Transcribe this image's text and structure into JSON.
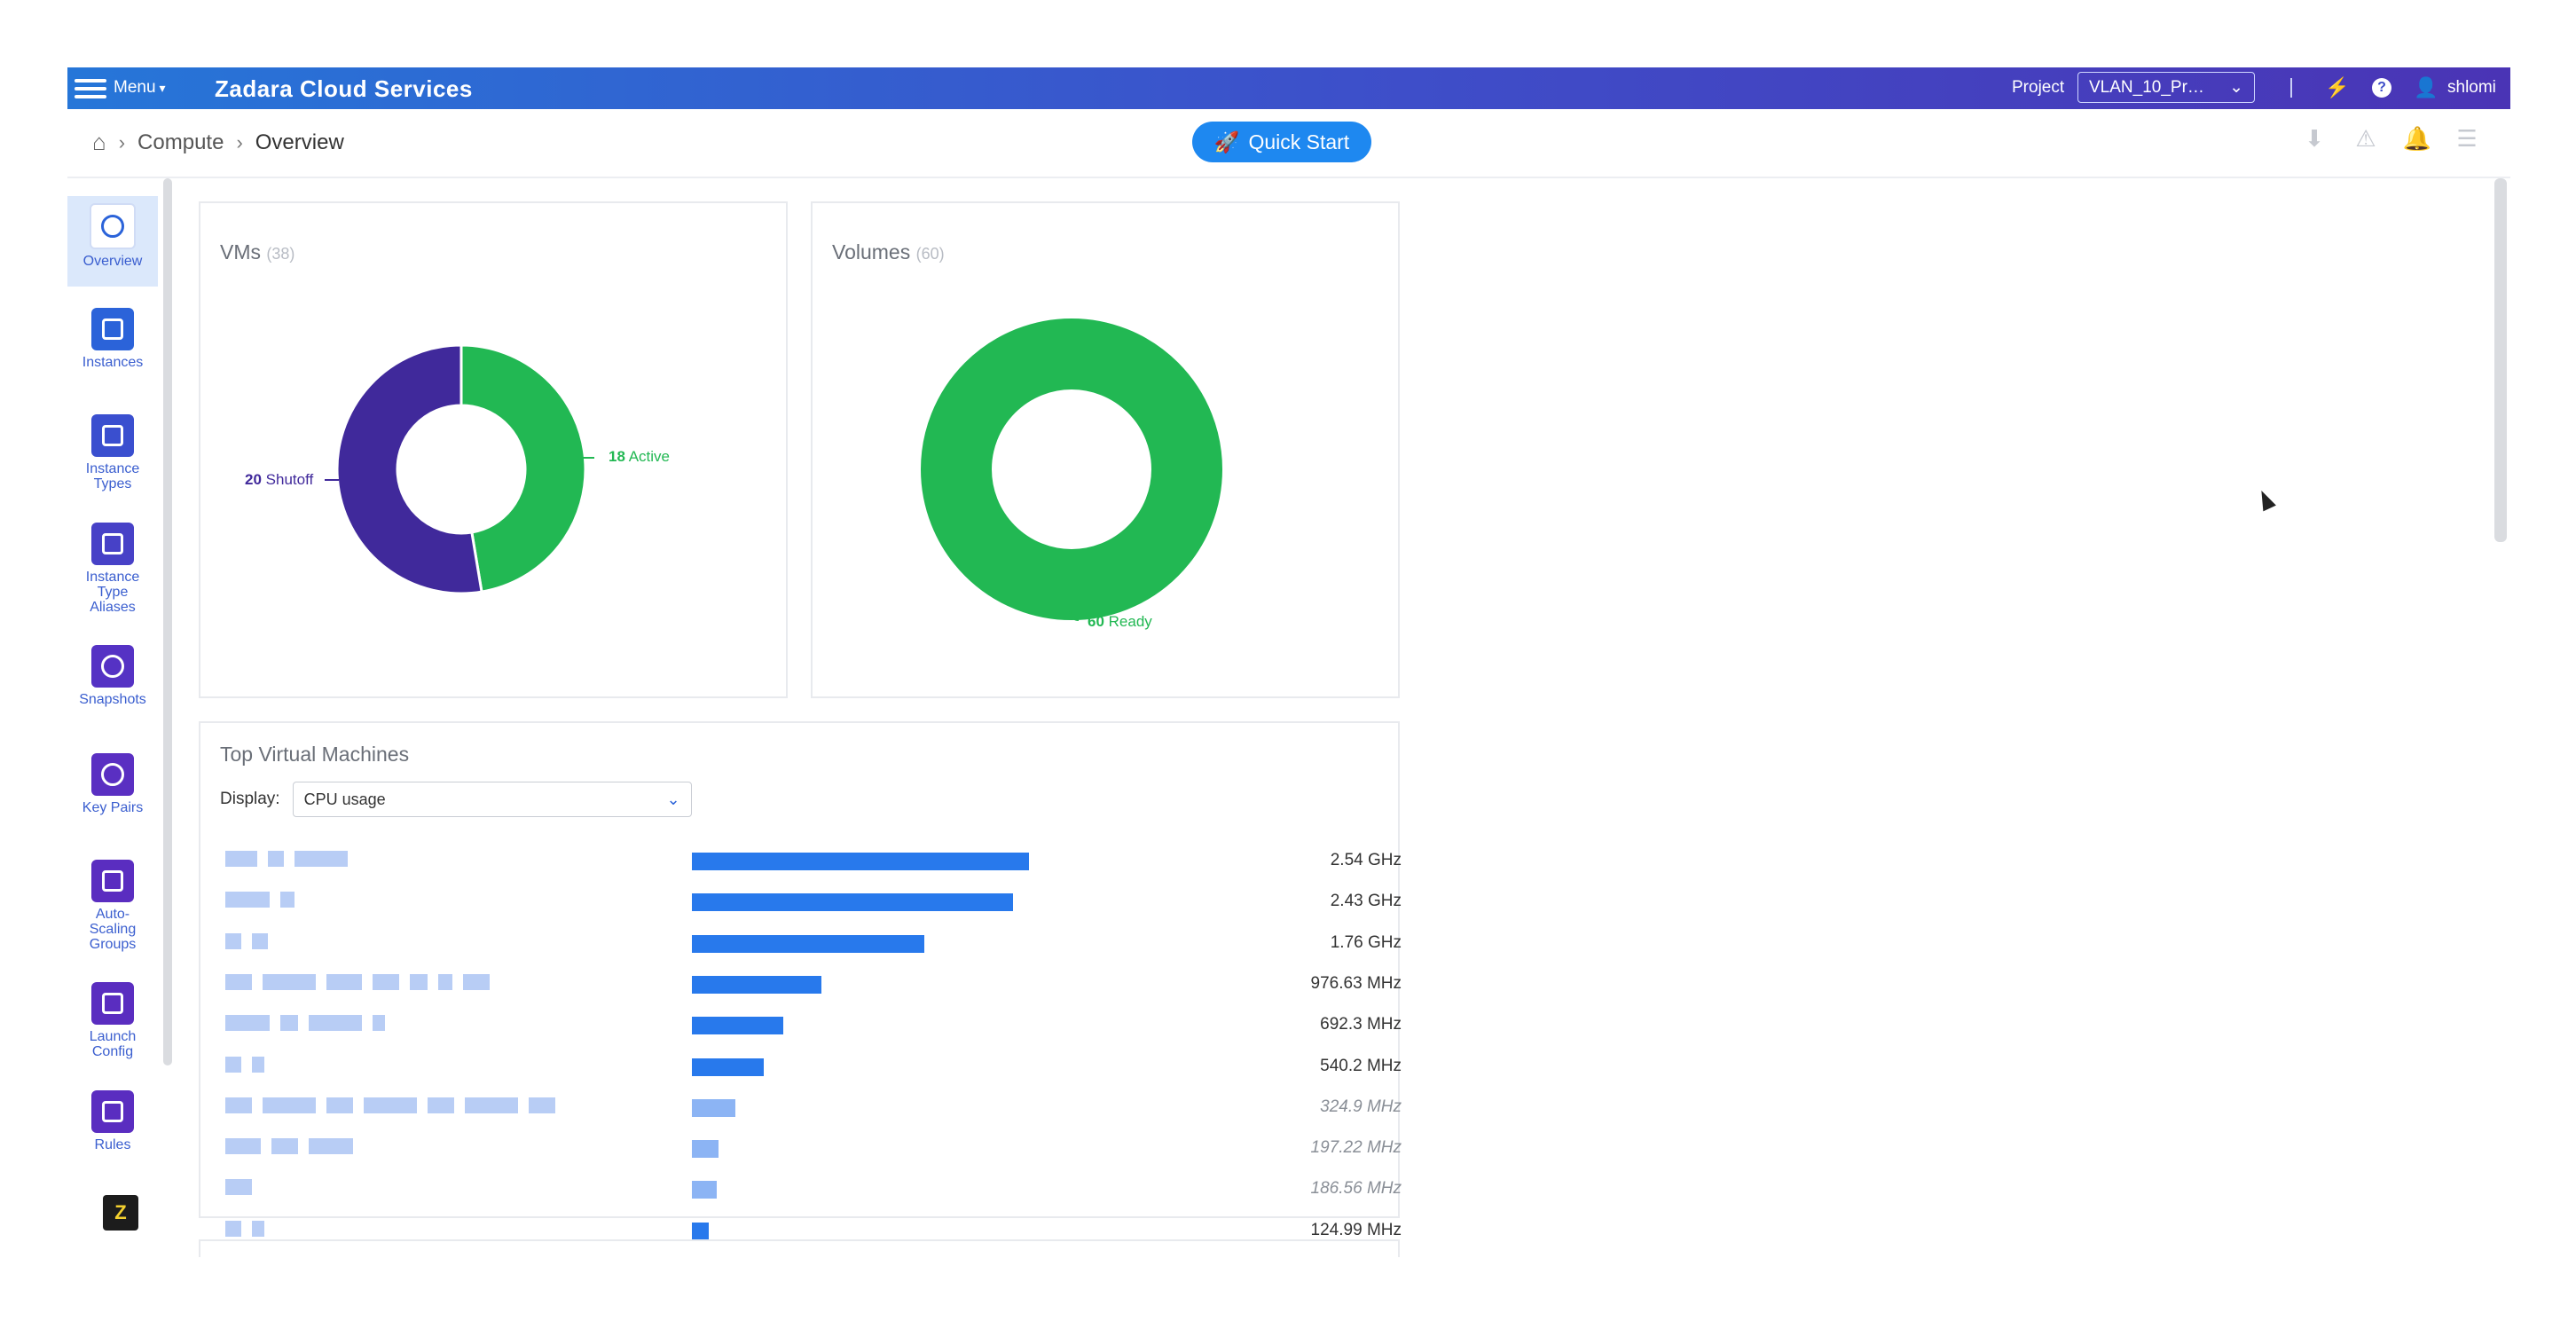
{
  "topbar": {
    "menu_label": "Menu",
    "app_title": "Zadara Cloud Services",
    "project_label": "Project",
    "project_value": "VLAN_10_Pr…",
    "user": "shlomi"
  },
  "breadcrumb": {
    "items": [
      "Compute",
      "Overview"
    ]
  },
  "quick_start": {
    "label": "Quick Start"
  },
  "sidebar": {
    "items": [
      {
        "label": "Overview"
      },
      {
        "label": "Instances"
      },
      {
        "label": "Instance Types"
      },
      {
        "label": "Instance Type Aliases"
      },
      {
        "label": "Snapshots"
      },
      {
        "label": "Key Pairs"
      },
      {
        "label": "Auto-Scaling Groups"
      },
      {
        "label": "Launch Config"
      },
      {
        "label": "Rules"
      }
    ],
    "badge": "Z"
  },
  "vms_card": {
    "title": "VMs",
    "count": "(38)",
    "shutoff_value": "20",
    "shutoff_label": "Shutoff",
    "active_value": "18",
    "active_label": "Active"
  },
  "volumes_card": {
    "title": "Volumes",
    "count": "(60)",
    "ready_value": "60",
    "ready_label": "Ready"
  },
  "top_vms": {
    "title": "Top Virtual Machines",
    "display_label": "Display:",
    "display_value": "CPU usage",
    "rows": [
      {
        "value": "2.54 GHz",
        "fraction": 1.0,
        "italic": false
      },
      {
        "value": "2.43 GHz",
        "fraction": 0.953,
        "italic": false
      },
      {
        "value": "1.76 GHz",
        "fraction": 0.69,
        "italic": false
      },
      {
        "value": "976.63 MHz",
        "fraction": 0.384,
        "italic": false
      },
      {
        "value": "692.3 MHz",
        "fraction": 0.272,
        "italic": false
      },
      {
        "value": "540.2 MHz",
        "fraction": 0.212,
        "italic": false
      },
      {
        "value": "324.9 MHz",
        "fraction": 0.128,
        "italic": true
      },
      {
        "value": "197.22 MHz",
        "fraction": 0.078,
        "italic": true
      },
      {
        "value": "186.56 MHz",
        "fraction": 0.073,
        "italic": true
      },
      {
        "value": "124.99 MHz",
        "fraction": 0.049,
        "italic": false
      }
    ]
  },
  "colors": {
    "active": "#22b853",
    "shutoff": "#40299b",
    "bar": "#2879ec",
    "accent": "#1e88f0"
  },
  "chart_data": [
    {
      "type": "pie",
      "title": "VMs",
      "categories": [
        "Active",
        "Shutoff"
      ],
      "values": [
        18,
        20
      ]
    },
    {
      "type": "pie",
      "title": "Volumes",
      "categories": [
        "Ready"
      ],
      "values": [
        60
      ]
    },
    {
      "type": "bar",
      "title": "Top Virtual Machines",
      "categories": [
        "VM 1",
        "VM 2",
        "VM 3",
        "VM 4",
        "VM 5",
        "VM 6",
        "VM 7",
        "VM 8",
        "VM 9",
        "VM 10"
      ],
      "values": [
        "2.54 GHz",
        "2.43 GHz",
        "1.76 GHz",
        "976.63 MHz",
        "692.3 MHz",
        "540.2 MHz",
        "324.9 MHz",
        "197.22 MHz",
        "186.56 MHz",
        "124.99 MHz"
      ]
    }
  ]
}
